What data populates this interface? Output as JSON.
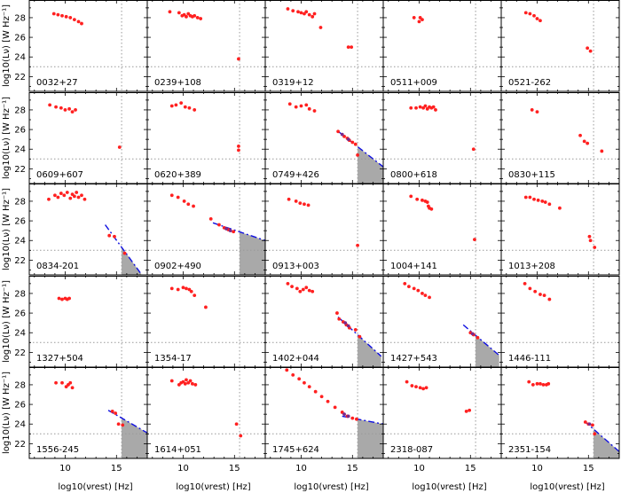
{
  "figure": {
    "xlabel": "log10(νrest) [Hz]",
    "ylabel": "log10(Lν) [W Hz⁻¹]",
    "xticks": [
      "10",
      "15"
    ],
    "yticks": [
      "22",
      "24",
      "26",
      "28"
    ]
  },
  "chart_data": {
    "type": "scatter",
    "layout": "5x5 grid of panels sharing axes",
    "xlim": [
      6.5,
      18
    ],
    "ylim": [
      20.5,
      29.8
    ],
    "xlabel": "log10(νrest) [Hz]",
    "ylabel": "log10(Lν) [W Hz⁻¹]",
    "reference_lines": {
      "x": 15.5,
      "y": 23
    },
    "colors": {
      "points": "#ff2020",
      "uv_points": "#7a2a8a",
      "model_line": "#1010e0",
      "shade": "#a9a9a9",
      "ref_lines": "#999999"
    },
    "panels": [
      {
        "name": "0032+27",
        "points": [
          [
            8.9,
            28.4
          ],
          [
            9.3,
            28.3
          ],
          [
            9.7,
            28.2
          ],
          [
            10.1,
            28.1
          ],
          [
            10.5,
            28.0
          ],
          [
            10.9,
            27.8
          ],
          [
            11.3,
            27.6
          ],
          [
            11.6,
            27.4
          ]
        ]
      },
      {
        "name": "0239+108",
        "points": [
          [
            8.7,
            28.6
          ],
          [
            9.6,
            28.5
          ],
          [
            9.9,
            28.2
          ],
          [
            10.1,
            28.3
          ],
          [
            10.3,
            28.1
          ],
          [
            10.5,
            28.4
          ],
          [
            10.7,
            28.2
          ],
          [
            10.9,
            28.1
          ],
          [
            11.1,
            28.2
          ],
          [
            11.4,
            28.0
          ],
          [
            11.7,
            27.9
          ],
          [
            15.4,
            23.8
          ]
        ]
      },
      {
        "name": "0319+12",
        "points": [
          [
            8.7,
            28.9
          ],
          [
            9.2,
            28.7
          ],
          [
            9.7,
            28.6
          ],
          [
            10.0,
            28.5
          ],
          [
            10.3,
            28.4
          ],
          [
            10.5,
            28.6
          ],
          [
            10.8,
            28.3
          ],
          [
            11.1,
            28.1
          ],
          [
            11.3,
            28.4
          ],
          [
            11.9,
            27.0
          ],
          [
            14.6,
            25.0
          ],
          [
            14.9,
            25.0
          ]
        ]
      },
      {
        "name": "0511+009",
        "points": [
          [
            9.5,
            28.0
          ],
          [
            10.0,
            27.6
          ],
          [
            10.1,
            28.0
          ],
          [
            10.3,
            27.8
          ]
        ]
      },
      {
        "name": "0521-262",
        "points": [
          [
            8.9,
            28.5
          ],
          [
            9.3,
            28.4
          ],
          [
            9.7,
            28.2
          ],
          [
            10.0,
            27.9
          ],
          [
            10.3,
            27.7
          ],
          [
            14.9,
            24.9
          ],
          [
            15.2,
            24.6
          ]
        ]
      },
      {
        "name": "0609+607",
        "points": [
          [
            8.5,
            28.5
          ],
          [
            9.1,
            28.3
          ],
          [
            9.6,
            28.2
          ],
          [
            10.0,
            28.0
          ],
          [
            10.4,
            28.1
          ],
          [
            10.7,
            27.8
          ],
          [
            11.0,
            28.0
          ],
          [
            15.3,
            24.2
          ]
        ]
      },
      {
        "name": "0620+389",
        "points": [
          [
            8.9,
            28.4
          ],
          [
            9.3,
            28.5
          ],
          [
            9.8,
            28.7
          ],
          [
            10.2,
            28.3
          ],
          [
            10.6,
            28.2
          ],
          [
            11.1,
            28.0
          ],
          [
            15.4,
            24.3
          ],
          [
            15.4,
            23.9
          ]
        ]
      },
      {
        "name": "0749+426",
        "points": [
          [
            8.9,
            28.6
          ],
          [
            9.5,
            28.3
          ],
          [
            10.0,
            28.4
          ],
          [
            10.5,
            28.5
          ],
          [
            10.8,
            28.1
          ],
          [
            11.3,
            27.9
          ],
          [
            13.6,
            25.8
          ],
          [
            14.2,
            25.3
          ],
          [
            14.5,
            25.1
          ],
          [
            14.7,
            24.9
          ],
          [
            15.0,
            24.7
          ],
          [
            15.3,
            24.5
          ],
          [
            15.5,
            23.4
          ]
        ],
        "uv": [
          [
            14.0,
            25.5
          ],
          [
            14.6,
            25.0
          ]
        ],
        "model": [
          [
            13.5,
            25.9
          ],
          [
            18,
            22.2
          ]
        ],
        "shade": true
      },
      {
        "name": "0800+618",
        "points": [
          [
            9.2,
            28.2
          ],
          [
            9.7,
            28.2
          ],
          [
            10.1,
            28.3
          ],
          [
            10.4,
            28.2
          ],
          [
            10.6,
            28.4
          ],
          [
            10.8,
            28.1
          ],
          [
            11.0,
            28.3
          ],
          [
            11.2,
            28.2
          ],
          [
            11.4,
            28.3
          ],
          [
            11.6,
            28.0
          ],
          [
            15.3,
            24.0
          ]
        ]
      },
      {
        "name": "0830+115",
        "points": [
          [
            9.5,
            28.0
          ],
          [
            10.0,
            27.8
          ],
          [
            14.2,
            25.4
          ],
          [
            14.6,
            24.8
          ],
          [
            14.9,
            24.6
          ],
          [
            16.3,
            23.8
          ]
        ]
      },
      {
        "name": "0834-201",
        "points": [
          [
            8.4,
            28.2
          ],
          [
            9.0,
            28.6
          ],
          [
            9.3,
            28.4
          ],
          [
            9.6,
            28.8
          ],
          [
            9.9,
            28.6
          ],
          [
            10.2,
            28.9
          ],
          [
            10.5,
            28.3
          ],
          [
            10.7,
            28.7
          ],
          [
            10.9,
            28.5
          ],
          [
            11.1,
            28.9
          ],
          [
            11.3,
            28.4
          ],
          [
            11.6,
            28.6
          ],
          [
            11.9,
            28.2
          ],
          [
            14.3,
            24.5
          ],
          [
            14.8,
            24.4
          ],
          [
            15.8,
            22.7
          ]
        ],
        "model": [
          [
            13.9,
            25.6
          ],
          [
            17.4,
            20.6
          ]
        ],
        "shade": true
      },
      {
        "name": "0902+490",
        "points": [
          [
            8.9,
            28.6
          ],
          [
            9.5,
            28.4
          ],
          [
            10.1,
            28.0
          ],
          [
            10.5,
            27.7
          ],
          [
            11.0,
            27.5
          ],
          [
            12.7,
            26.2
          ],
          [
            13.5,
            25.6
          ],
          [
            14.0,
            25.3
          ],
          [
            14.4,
            25.1
          ],
          [
            14.9,
            24.9
          ]
        ],
        "uv": [
          [
            14.2,
            25.2
          ],
          [
            14.6,
            25.0
          ]
        ],
        "model": [
          [
            12.9,
            25.8
          ],
          [
            18,
            24.0
          ]
        ],
        "shade": true
      },
      {
        "name": "0913+003",
        "points": [
          [
            8.8,
            28.2
          ],
          [
            9.5,
            28.0
          ],
          [
            9.9,
            27.8
          ],
          [
            10.3,
            27.7
          ],
          [
            10.7,
            27.6
          ],
          [
            15.5,
            23.5
          ]
        ]
      },
      {
        "name": "1004+141",
        "points": [
          [
            9.2,
            28.5
          ],
          [
            9.8,
            28.2
          ],
          [
            10.3,
            28.1
          ],
          [
            10.6,
            28.0
          ],
          [
            10.8,
            27.9
          ],
          [
            10.9,
            27.5
          ],
          [
            11.0,
            27.3
          ],
          [
            11.2,
            27.2
          ],
          [
            15.4,
            24.1
          ]
        ]
      },
      {
        "name": "1013+208",
        "points": [
          [
            8.9,
            28.4
          ],
          [
            9.3,
            28.4
          ],
          [
            9.7,
            28.2
          ],
          [
            10.1,
            28.1
          ],
          [
            10.5,
            28.0
          ],
          [
            10.8,
            27.9
          ],
          [
            11.2,
            27.7
          ],
          [
            12.2,
            27.3
          ],
          [
            15.1,
            24.4
          ],
          [
            15.2,
            24.0
          ],
          [
            15.6,
            23.3
          ]
        ]
      },
      {
        "name": "1327+504",
        "points": [
          [
            9.4,
            27.5
          ],
          [
            9.7,
            27.4
          ],
          [
            10.0,
            27.5
          ],
          [
            10.2,
            27.4
          ],
          [
            10.4,
            27.5
          ]
        ]
      },
      {
        "name": "1354-17",
        "points": [
          [
            8.9,
            28.5
          ],
          [
            9.5,
            28.4
          ],
          [
            10.0,
            28.6
          ],
          [
            10.3,
            28.5
          ],
          [
            10.6,
            28.4
          ],
          [
            10.8,
            28.2
          ],
          [
            11.1,
            27.8
          ],
          [
            12.2,
            26.6
          ]
        ]
      },
      {
        "name": "1402+044",
        "points": [
          [
            8.7,
            29.0
          ],
          [
            9.1,
            28.7
          ],
          [
            9.6,
            28.5
          ],
          [
            9.9,
            28.2
          ],
          [
            10.2,
            28.4
          ],
          [
            10.5,
            28.6
          ],
          [
            10.8,
            28.3
          ],
          [
            11.1,
            28.2
          ],
          [
            13.5,
            26.0
          ],
          [
            13.7,
            25.4
          ],
          [
            14.1,
            25.1
          ],
          [
            14.4,
            24.8
          ],
          [
            14.7,
            24.5
          ],
          [
            15.3,
            24.3
          ],
          [
            15.7,
            23.6
          ]
        ],
        "uv": [
          [
            14.3,
            25.0
          ],
          [
            14.6,
            24.7
          ]
        ],
        "model": [
          [
            13.6,
            25.6
          ],
          [
            17.8,
            21.6
          ]
        ],
        "shade": true
      },
      {
        "name": "1427+543",
        "points": [
          [
            8.6,
            29.0
          ],
          [
            9.0,
            28.7
          ],
          [
            9.5,
            28.5
          ],
          [
            9.9,
            28.3
          ],
          [
            10.3,
            28.0
          ],
          [
            10.6,
            27.8
          ],
          [
            11.0,
            27.6
          ],
          [
            15.0,
            24.0
          ],
          [
            15.3,
            23.8
          ],
          [
            15.7,
            23.5
          ]
        ],
        "uv": [
          [
            15.2,
            23.9
          ]
        ],
        "model": [
          [
            14.3,
            24.8
          ],
          [
            17.8,
            21.7
          ]
        ],
        "shade": true
      },
      {
        "name": "1446-111",
        "points": [
          [
            8.8,
            29.0
          ],
          [
            9.3,
            28.5
          ],
          [
            9.8,
            28.2
          ],
          [
            10.3,
            27.9
          ],
          [
            10.7,
            27.8
          ],
          [
            11.2,
            27.4
          ]
        ]
      },
      {
        "name": "1556-245",
        "points": [
          [
            9.1,
            28.2
          ],
          [
            9.7,
            28.2
          ],
          [
            10.1,
            27.8
          ],
          [
            10.3,
            28.0
          ],
          [
            10.5,
            28.2
          ],
          [
            10.7,
            27.7
          ],
          [
            14.6,
            25.3
          ],
          [
            14.9,
            25.1
          ],
          [
            15.2,
            24.0
          ],
          [
            15.6,
            23.9
          ]
        ],
        "model": [
          [
            14.2,
            25.4
          ],
          [
            18,
            23.1
          ]
        ],
        "shade": true
      },
      {
        "name": "1614+051",
        "points": [
          [
            8.9,
            28.4
          ],
          [
            9.6,
            28.0
          ],
          [
            9.8,
            28.2
          ],
          [
            10.0,
            28.3
          ],
          [
            10.2,
            28.1
          ],
          [
            10.3,
            28.5
          ],
          [
            10.5,
            28.2
          ],
          [
            10.7,
            28.4
          ],
          [
            10.9,
            28.1
          ],
          [
            11.2,
            28.0
          ],
          [
            15.2,
            24.0
          ],
          [
            15.6,
            22.8
          ]
        ]
      },
      {
        "name": "1745+624",
        "points": [
          [
            8.6,
            29.5
          ],
          [
            9.2,
            29.0
          ],
          [
            9.8,
            28.6
          ],
          [
            10.3,
            28.2
          ],
          [
            10.8,
            27.8
          ],
          [
            11.4,
            27.3
          ],
          [
            12.0,
            26.8
          ],
          [
            12.6,
            26.3
          ],
          [
            13.3,
            25.7
          ],
          [
            14.0,
            25.2
          ],
          [
            14.5,
            24.8
          ],
          [
            15.0,
            24.6
          ],
          [
            15.4,
            24.5
          ]
        ],
        "uv": [
          [
            14.2,
            25.0
          ],
          [
            14.6,
            24.8
          ]
        ],
        "model": [
          [
            14.0,
            24.8
          ],
          [
            18,
            24.0
          ]
        ],
        "shade": true
      },
      {
        "name": "2318-087",
        "points": [
          [
            8.8,
            28.3
          ],
          [
            9.3,
            27.9
          ],
          [
            9.7,
            27.8
          ],
          [
            10.1,
            27.7
          ],
          [
            10.4,
            27.6
          ],
          [
            10.7,
            27.7
          ],
          [
            14.6,
            25.3
          ],
          [
            14.9,
            25.4
          ]
        ]
      },
      {
        "name": "2351-154",
        "points": [
          [
            9.2,
            28.3
          ],
          [
            9.6,
            28.0
          ],
          [
            10.0,
            28.1
          ],
          [
            10.3,
            28.1
          ],
          [
            10.6,
            28.0
          ],
          [
            10.9,
            28.0
          ],
          [
            11.1,
            28.1
          ],
          [
            14.7,
            24.2
          ],
          [
            15.0,
            24.0
          ],
          [
            15.4,
            23.9
          ],
          [
            15.6,
            23.0
          ]
        ],
        "uv": [
          [
            15.1,
            24.0
          ]
        ],
        "model": [
          [
            14.6,
            24.3
          ],
          [
            18,
            21.2
          ]
        ],
        "shade": true
      }
    ]
  }
}
